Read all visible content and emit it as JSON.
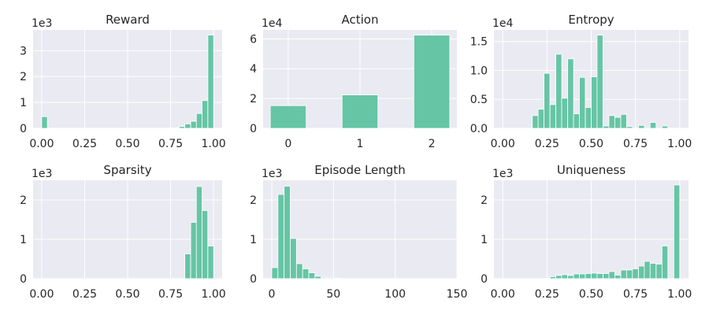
{
  "colors": {
    "bar": "#66c5a5",
    "panel": "#eaeaf2",
    "grid": "#ffffff",
    "text": "#262626"
  },
  "chart_data": [
    {
      "type": "bar",
      "title": "Reward",
      "multiplier": "1e3",
      "bin_width": 0.0333,
      "bins": [
        {
          "x": 0.0,
          "v": 0.45
        },
        {
          "x": 0.033,
          "v": 0.01
        },
        {
          "x": 0.067,
          "v": 0.0
        },
        {
          "x": 0.1,
          "v": 0.0
        },
        {
          "x": 0.133,
          "v": 0.0
        },
        {
          "x": 0.167,
          "v": 0.0
        },
        {
          "x": 0.2,
          "v": 0.0
        },
        {
          "x": 0.233,
          "v": 0.0
        },
        {
          "x": 0.267,
          "v": 0.0
        },
        {
          "x": 0.3,
          "v": 0.0
        },
        {
          "x": 0.333,
          "v": 0.0
        },
        {
          "x": 0.367,
          "v": 0.0
        },
        {
          "x": 0.4,
          "v": 0.0
        },
        {
          "x": 0.433,
          "v": 0.0
        },
        {
          "x": 0.467,
          "v": 0.0
        },
        {
          "x": 0.5,
          "v": 0.0
        },
        {
          "x": 0.533,
          "v": 0.0
        },
        {
          "x": 0.567,
          "v": 0.0
        },
        {
          "x": 0.6,
          "v": 0.0
        },
        {
          "x": 0.633,
          "v": 0.0
        },
        {
          "x": 0.667,
          "v": 0.0
        },
        {
          "x": 0.7,
          "v": 0.0
        },
        {
          "x": 0.733,
          "v": 0.01
        },
        {
          "x": 0.767,
          "v": 0.02
        },
        {
          "x": 0.8,
          "v": 0.07
        },
        {
          "x": 0.833,
          "v": 0.17
        },
        {
          "x": 0.867,
          "v": 0.27
        },
        {
          "x": 0.9,
          "v": 0.57
        },
        {
          "x": 0.933,
          "v": 1.07
        },
        {
          "x": 0.967,
          "v": 3.6
        }
      ],
      "xlim": [
        -0.05,
        1.05
      ],
      "ylim": [
        0,
        3.8
      ],
      "xticks": [
        0,
        0.25,
        0.5,
        0.75,
        1.0
      ],
      "xticklabels": [
        "0.00",
        "0.25",
        "0.50",
        "0.75",
        "1.00"
      ],
      "yticks": [
        0,
        1,
        2,
        3
      ],
      "yticklabels": [
        "0",
        "1",
        "2",
        "3"
      ]
    },
    {
      "type": "bar",
      "title": "Action",
      "multiplier": "1e4",
      "bin_width": 0.5,
      "bins": [
        {
          "x": -0.25,
          "v": 1.52
        },
        {
          "x": 0.75,
          "v": 2.24
        },
        {
          "x": 1.75,
          "v": 6.25
        }
      ],
      "xlim": [
        -0.35,
        2.35
      ],
      "ylim": [
        0,
        6.6
      ],
      "xticks": [
        0,
        1,
        2
      ],
      "xticklabels": [
        "0",
        "1",
        "2"
      ],
      "yticks": [
        0,
        2,
        4,
        6
      ],
      "yticklabels": [
        "0",
        "2",
        "4",
        "6"
      ]
    },
    {
      "type": "bar",
      "title": "Entropy",
      "multiplier": "1e4",
      "bin_width": 0.0333,
      "bins": [
        {
          "x": 0.0,
          "v": 0.0
        },
        {
          "x": 0.033,
          "v": 0.0
        },
        {
          "x": 0.067,
          "v": 0.0
        },
        {
          "x": 0.1,
          "v": 0.0
        },
        {
          "x": 0.133,
          "v": 0.0
        },
        {
          "x": 0.167,
          "v": 0.22
        },
        {
          "x": 0.2,
          "v": 0.33
        },
        {
          "x": 0.233,
          "v": 0.95
        },
        {
          "x": 0.267,
          "v": 0.41
        },
        {
          "x": 0.3,
          "v": 1.28
        },
        {
          "x": 0.333,
          "v": 0.52
        },
        {
          "x": 0.367,
          "v": 1.2
        },
        {
          "x": 0.4,
          "v": 0.25
        },
        {
          "x": 0.433,
          "v": 0.88
        },
        {
          "x": 0.467,
          "v": 0.36
        },
        {
          "x": 0.5,
          "v": 0.89
        },
        {
          "x": 0.533,
          "v": 1.61
        },
        {
          "x": 0.567,
          "v": 0.04
        },
        {
          "x": 0.6,
          "v": 0.22
        },
        {
          "x": 0.633,
          "v": 0.19
        },
        {
          "x": 0.667,
          "v": 0.24
        },
        {
          "x": 0.7,
          "v": 0.03
        },
        {
          "x": 0.733,
          "v": 0.0
        },
        {
          "x": 0.767,
          "v": 0.05
        },
        {
          "x": 0.8,
          "v": 0.0
        },
        {
          "x": 0.833,
          "v": 0.1
        },
        {
          "x": 0.867,
          "v": 0.0
        },
        {
          "x": 0.9,
          "v": 0.04
        },
        {
          "x": 0.933,
          "v": 0.0
        },
        {
          "x": 0.967,
          "v": 0.0
        }
      ],
      "xlim": [
        -0.05,
        1.05
      ],
      "ylim": [
        0,
        1.7
      ],
      "xticks": [
        0,
        0.25,
        0.5,
        0.75,
        1.0
      ],
      "xticklabels": [
        "0.00",
        "0.25",
        "0.50",
        "0.75",
        "1.00"
      ],
      "yticks": [
        0,
        0.5,
        1.0,
        1.5
      ],
      "yticklabels": [
        "0.0",
        "0.5",
        "1.0",
        "1.5"
      ]
    },
    {
      "type": "bar",
      "title": "Sparsity",
      "multiplier": "1e3",
      "bin_width": 0.0333,
      "bins": [
        {
          "x": 0.833,
          "v": 0.63
        },
        {
          "x": 0.867,
          "v": 1.43
        },
        {
          "x": 0.9,
          "v": 2.34
        },
        {
          "x": 0.933,
          "v": 1.73
        },
        {
          "x": 0.967,
          "v": 0.83
        }
      ],
      "xlim": [
        -0.05,
        1.05
      ],
      "ylim": [
        0,
        2.5
      ],
      "xticks": [
        0,
        0.25,
        0.5,
        0.75,
        1.0
      ],
      "xticklabels": [
        "0.00",
        "0.25",
        "0.50",
        "0.75",
        "1.00"
      ],
      "yticks": [
        0,
        1,
        2
      ],
      "yticklabels": [
        "0",
        "1",
        "2"
      ]
    },
    {
      "type": "bar",
      "title": "Episode Length",
      "multiplier": "1e3",
      "bin_width": 5,
      "bins": [
        {
          "x": 0,
          "v": 0.28
        },
        {
          "x": 5,
          "v": 2.14
        },
        {
          "x": 10,
          "v": 2.35
        },
        {
          "x": 15,
          "v": 1.02
        },
        {
          "x": 20,
          "v": 0.38
        },
        {
          "x": 25,
          "v": 0.25
        },
        {
          "x": 30,
          "v": 0.15
        },
        {
          "x": 35,
          "v": 0.06
        },
        {
          "x": 40,
          "v": 0.02
        },
        {
          "x": 45,
          "v": 0.02
        },
        {
          "x": 50,
          "v": 0.01
        },
        {
          "x": 55,
          "v": 0.0
        }
      ],
      "xlim": [
        -7,
        150
      ],
      "ylim": [
        0,
        2.5
      ],
      "xticks": [
        0,
        50,
        100,
        150
      ],
      "xticklabels": [
        "0",
        "50",
        "100",
        "150"
      ],
      "yticks": [
        0,
        1,
        2
      ],
      "yticklabels": [
        "0",
        "1",
        "2"
      ]
    },
    {
      "type": "bar",
      "title": "Uniqueness",
      "multiplier": "1e3",
      "bin_width": 0.0333,
      "bins": [
        {
          "x": 0.0,
          "v": 0.0
        },
        {
          "x": 0.033,
          "v": 0.0
        },
        {
          "x": 0.067,
          "v": 0.0
        },
        {
          "x": 0.1,
          "v": 0.0
        },
        {
          "x": 0.133,
          "v": 0.0
        },
        {
          "x": 0.167,
          "v": 0.0
        },
        {
          "x": 0.2,
          "v": 0.0
        },
        {
          "x": 0.233,
          "v": 0.01
        },
        {
          "x": 0.267,
          "v": 0.05
        },
        {
          "x": 0.3,
          "v": 0.08
        },
        {
          "x": 0.333,
          "v": 0.1
        },
        {
          "x": 0.367,
          "v": 0.08
        },
        {
          "x": 0.4,
          "v": 0.12
        },
        {
          "x": 0.433,
          "v": 0.12
        },
        {
          "x": 0.467,
          "v": 0.13
        },
        {
          "x": 0.5,
          "v": 0.14
        },
        {
          "x": 0.533,
          "v": 0.13
        },
        {
          "x": 0.567,
          "v": 0.13
        },
        {
          "x": 0.6,
          "v": 0.18
        },
        {
          "x": 0.633,
          "v": 0.09
        },
        {
          "x": 0.667,
          "v": 0.22
        },
        {
          "x": 0.7,
          "v": 0.22
        },
        {
          "x": 0.733,
          "v": 0.25
        },
        {
          "x": 0.767,
          "v": 0.32
        },
        {
          "x": 0.8,
          "v": 0.44
        },
        {
          "x": 0.833,
          "v": 0.39
        },
        {
          "x": 0.867,
          "v": 0.37
        },
        {
          "x": 0.9,
          "v": 0.83
        },
        {
          "x": 0.933,
          "v": 0.0
        },
        {
          "x": 0.967,
          "v": 2.38
        }
      ],
      "xlim": [
        -0.05,
        1.05
      ],
      "ylim": [
        0,
        2.5
      ],
      "xticks": [
        0,
        0.25,
        0.5,
        0.75,
        1.0
      ],
      "xticklabels": [
        "0.00",
        "0.25",
        "0.50",
        "0.75",
        "1.00"
      ],
      "yticks": [
        0,
        1,
        2
      ],
      "yticklabels": [
        "0",
        "1",
        "2"
      ]
    }
  ]
}
